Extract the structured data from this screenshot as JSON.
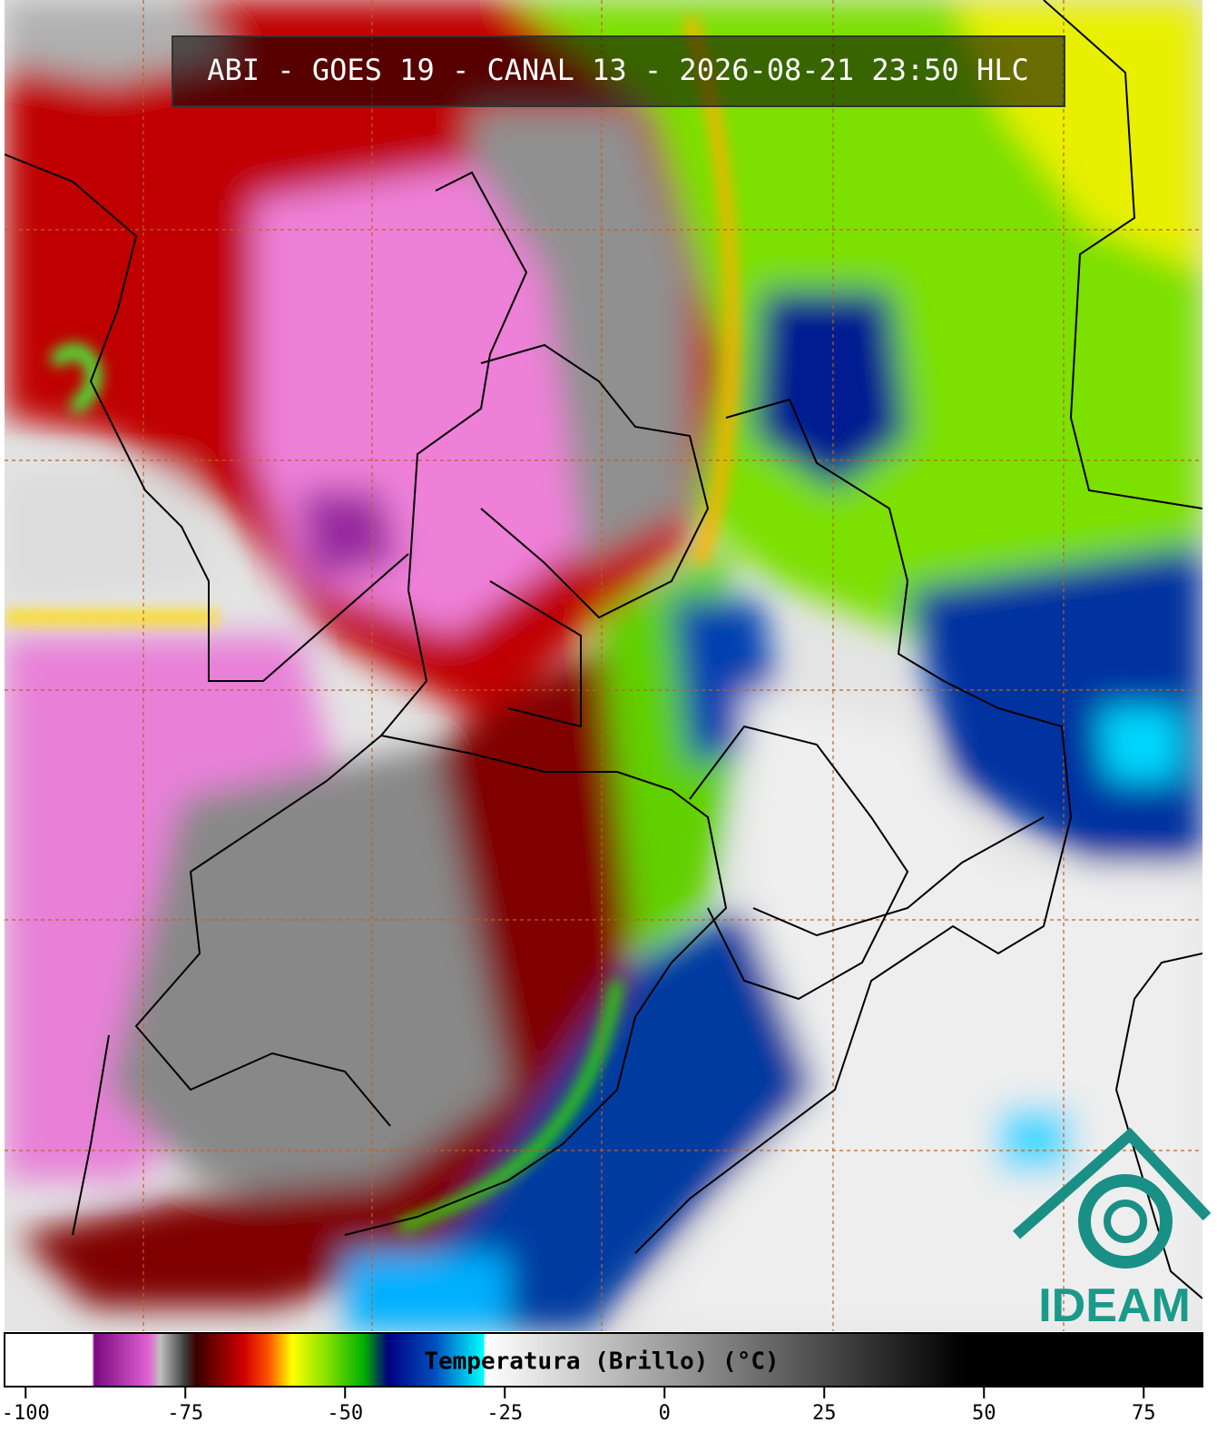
{
  "header": {
    "title": "ABI - GOES 19 - CANAL 13 - 2026-08-21 23:50 HLC"
  },
  "logo": {
    "text": "IDEAM"
  },
  "colorbar": {
    "label": "Temperatura (Brillo) (°C)",
    "lim": [
      -103.3,
      84.2
    ],
    "ticks": [
      -100,
      -75,
      -50,
      -25,
      0,
      25,
      50,
      75
    ]
  }
}
